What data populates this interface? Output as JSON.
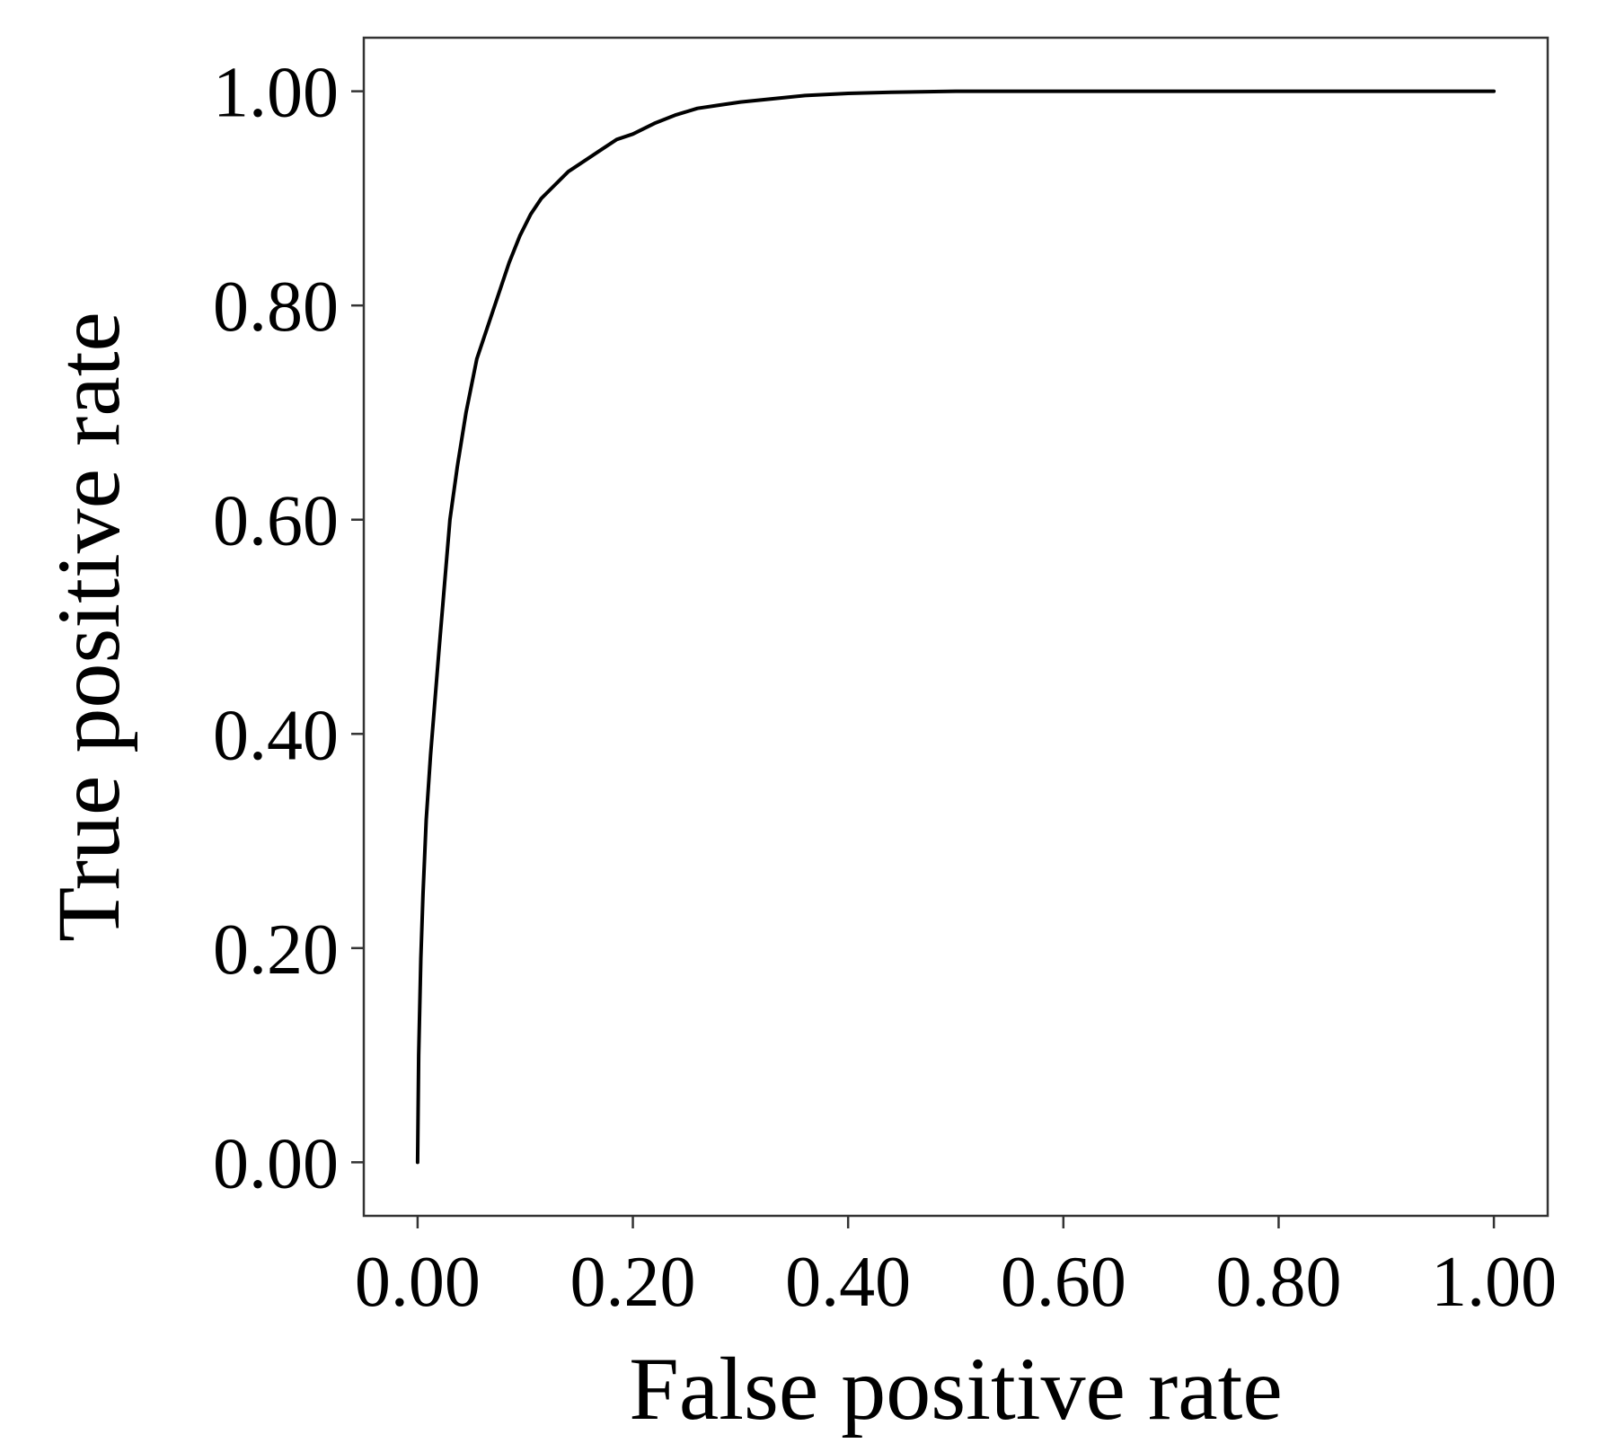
{
  "chart_data": {
    "type": "line",
    "title": "",
    "xlabel": "False positive rate",
    "ylabel": "True positive rate",
    "xlim": [
      -0.05,
      1.05
    ],
    "ylim": [
      -0.05,
      1.05
    ],
    "grid": false,
    "x_ticks": [
      0.0,
      0.2,
      0.4,
      0.6,
      0.8,
      1.0
    ],
    "y_ticks": [
      0.0,
      0.2,
      0.4,
      0.6,
      0.8,
      1.0
    ],
    "x_tick_labels": [
      "0.00",
      "0.20",
      "0.40",
      "0.60",
      "0.80",
      "1.00"
    ],
    "y_tick_labels": [
      "0.00",
      "0.20",
      "0.40",
      "0.60",
      "0.80",
      "1.00"
    ],
    "colors": {
      "line": "#000000",
      "frame": "#333333"
    },
    "series": [
      {
        "x": [
          0.0,
          0.001,
          0.003,
          0.005,
          0.008,
          0.012,
          0.016,
          0.02,
          0.025,
          0.03,
          0.037,
          0.045,
          0.055,
          0.065,
          0.075,
          0.085,
          0.095,
          0.105,
          0.115,
          0.125,
          0.14,
          0.155,
          0.17,
          0.185,
          0.2,
          0.22,
          0.24,
          0.26,
          0.28,
          0.3,
          0.33,
          0.36,
          0.4,
          0.44,
          0.5,
          0.6,
          0.7,
          0.8,
          0.9,
          1.0
        ],
        "y": [
          0.0,
          0.1,
          0.19,
          0.25,
          0.32,
          0.38,
          0.43,
          0.48,
          0.54,
          0.6,
          0.65,
          0.7,
          0.75,
          0.78,
          0.81,
          0.84,
          0.865,
          0.885,
          0.9,
          0.91,
          0.925,
          0.935,
          0.945,
          0.955,
          0.96,
          0.97,
          0.978,
          0.984,
          0.987,
          0.99,
          0.993,
          0.996,
          0.998,
          0.999,
          1.0,
          1.0,
          1.0,
          1.0,
          1.0,
          1.0
        ]
      }
    ]
  }
}
